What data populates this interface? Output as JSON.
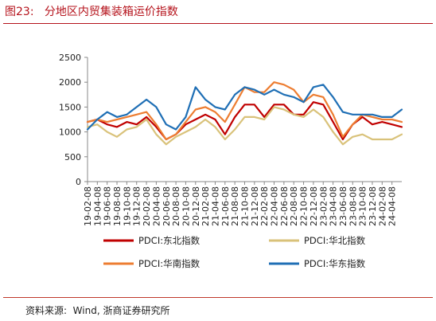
{
  "figure": {
    "title": "图23:   分地区内贸集装箱运价指数",
    "source": "资料来源:  Wind, 浙商证券研究所"
  },
  "chart_data": {
    "type": "line",
    "title": "",
    "xlabel": "",
    "ylabel": "",
    "ylim": [
      0,
      2500
    ],
    "yticks": [
      0,
      500,
      1000,
      1500,
      2000,
      2500
    ],
    "grid": false,
    "legend_position": "bottom",
    "x_tick_labels": [
      "19-02-08",
      "19-04-08",
      "19-06-08",
      "19-08-08",
      "19-10-08",
      "19-12-08",
      "20-02-08",
      "20-04-08",
      "20-06-08",
      "20-08-08",
      "20-10-08",
      "20-12-08",
      "21-02-08",
      "21-04-08",
      "21-06-08",
      "21-08-08",
      "21-10-08",
      "21-12-08",
      "22-02-08",
      "22-04-08",
      "22-06-08",
      "22-08-08",
      "22-10-08",
      "22-12-08",
      "23-02-08",
      "23-04-08",
      "23-06-08",
      "23-08-08",
      "23-10-08",
      "23-12-08",
      "24-02-08",
      "24-04-08"
    ],
    "x": [
      "19-02-08",
      "19-04-08",
      "19-06-08",
      "19-08-08",
      "19-10-08",
      "19-12-08",
      "20-02-08",
      "20-04-08",
      "20-06-08",
      "20-08-08",
      "20-10-08",
      "20-12-08",
      "21-02-08",
      "21-04-08",
      "21-06-08",
      "21-08-08",
      "21-10-08",
      "21-12-08",
      "22-02-08",
      "22-04-08",
      "22-06-08",
      "22-08-08",
      "22-10-08",
      "22-12-08",
      "23-02-08",
      "23-04-08",
      "23-06-08",
      "23-08-08",
      "23-10-08",
      "23-12-08",
      "24-02-08",
      "24-04-08",
      "24-05-08"
    ],
    "series": [
      {
        "name": "PDCI:东北指数",
        "color": "#c00000",
        "values": [
          1200,
          1250,
          1150,
          1100,
          1200,
          1150,
          1300,
          1100,
          850,
          950,
          1150,
          1250,
          1350,
          1250,
          950,
          1300,
          1550,
          1550,
          1300,
          1550,
          1550,
          1350,
          1350,
          1600,
          1550,
          1200,
          850,
          1150,
          1300,
          1150,
          1200,
          1150,
          1100
        ]
      },
      {
        "name": "PDCI:华北指数",
        "color": "#d9c27a",
        "values": [
          1100,
          1150,
          1000,
          900,
          1050,
          1100,
          1250,
          950,
          750,
          900,
          1000,
          1100,
          1250,
          1100,
          850,
          1050,
          1300,
          1300,
          1250,
          1500,
          1450,
          1350,
          1300,
          1450,
          1300,
          1000,
          750,
          900,
          950,
          850,
          850,
          850,
          950
        ]
      },
      {
        "name": "PDCI:华南指数",
        "color": "#ed7d31",
        "values": [
          1200,
          1250,
          1200,
          1250,
          1300,
          1350,
          1400,
          1150,
          850,
          950,
          1200,
          1450,
          1500,
          1400,
          1200,
          1550,
          1900,
          1800,
          1800,
          2000,
          1950,
          1850,
          1600,
          1750,
          1700,
          1350,
          900,
          1150,
          1350,
          1300,
          1250,
          1250,
          1200
        ]
      },
      {
        "name": "PDCI:华东指数",
        "color": "#1f6fb5",
        "values": [
          1050,
          1250,
          1400,
          1300,
          1350,
          1500,
          1650,
          1500,
          1150,
          1050,
          1300,
          1900,
          1650,
          1500,
          1450,
          1750,
          1900,
          1850,
          1750,
          1850,
          1750,
          1700,
          1600,
          1900,
          1950,
          1700,
          1400,
          1350,
          1350,
          1350,
          1300,
          1300,
          1450
        ]
      }
    ]
  }
}
